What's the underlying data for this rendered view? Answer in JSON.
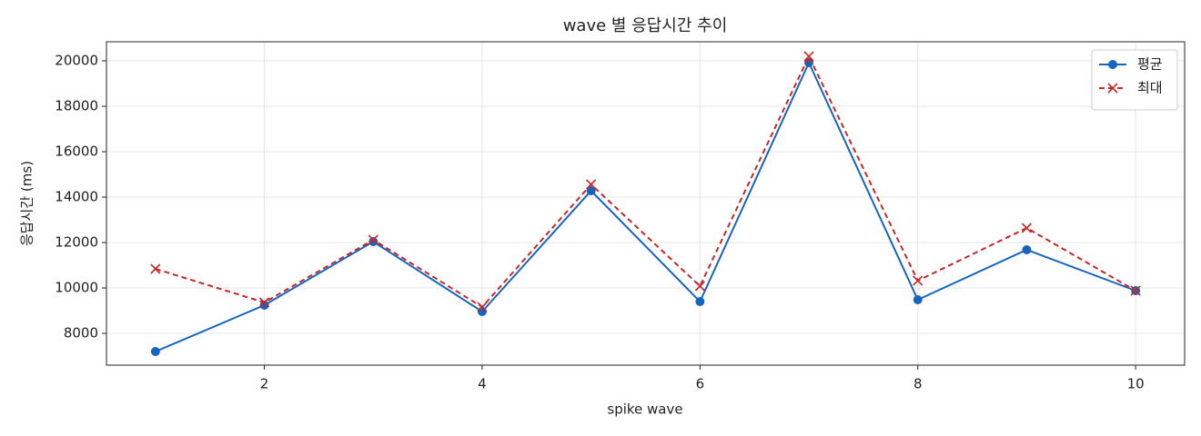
{
  "chart_data": {
    "type": "line",
    "title": "wave 별 응답시간 추이",
    "xlabel": "spike wave",
    "ylabel": "응답시간 (ms)",
    "x": [
      1,
      2,
      3,
      4,
      5,
      6,
      7,
      8,
      9,
      10
    ],
    "series": [
      {
        "name": "평균",
        "color": "#1565c0",
        "marker": "circle",
        "linestyle": "solid",
        "values": [
          7200,
          9240,
          12040,
          8960,
          14280,
          9400,
          19920,
          9480,
          11680,
          9880
        ]
      },
      {
        "name": "최대",
        "color": "#c62828",
        "marker": "x",
        "linestyle": "dashed",
        "values": [
          10840,
          9360,
          12120,
          9160,
          14560,
          10080,
          20200,
          10320,
          12640,
          9880
        ]
      }
    ],
    "xlim": [
      0.55,
      10.45
    ],
    "xticks": [
      2,
      4,
      6,
      8,
      10
    ],
    "ylim": [
      6600,
      20840
    ],
    "yticks": [
      8000,
      10000,
      12000,
      14000,
      16000,
      18000,
      20000
    ],
    "grid": true,
    "legend": "upper right"
  }
}
